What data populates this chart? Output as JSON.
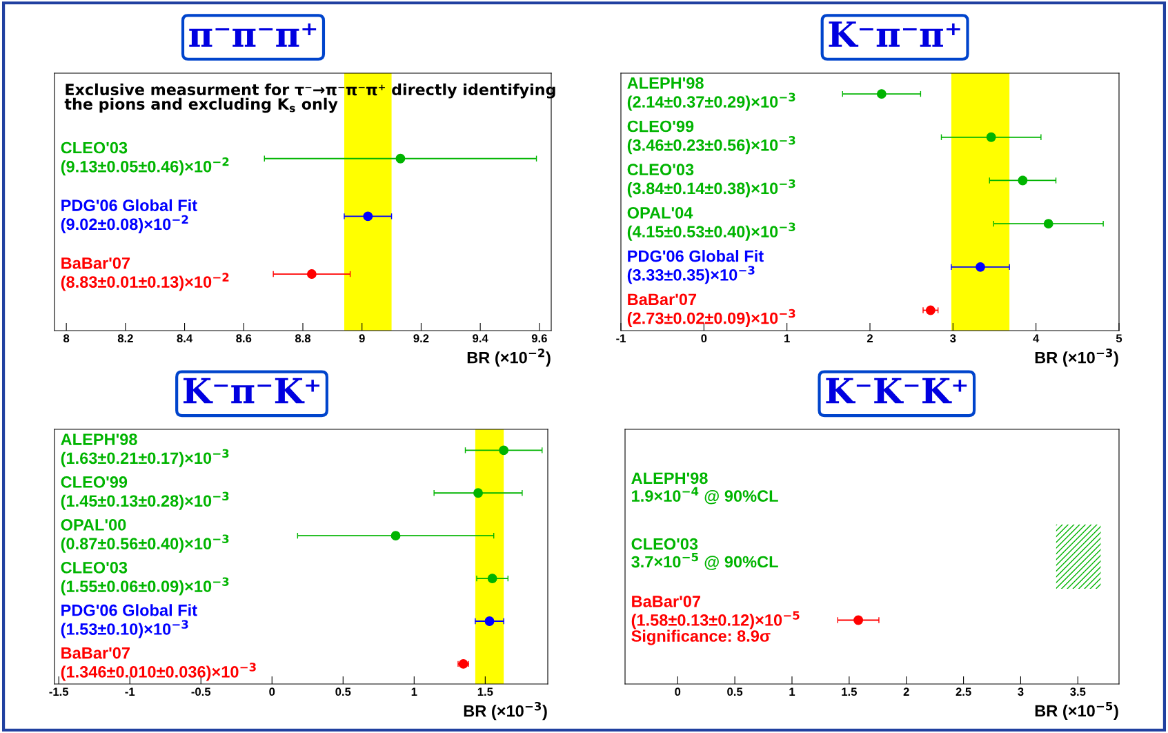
{
  "chart_data": [
    {
      "type": "scatter",
      "orientation": "horizontal",
      "title": "π⁻π⁻π⁺",
      "xlabel": "BR (×10$^{−2}$)",
      "xlim": [
        7.96,
        9.64
      ],
      "xticks": [
        8,
        8.2,
        8.4,
        8.6,
        8.8,
        9,
        9.2,
        9.4,
        9.6
      ],
      "grid": false,
      "marker": "circle",
      "categories": [
        "CLEO'03\n(9.13±0.05±0.46)×10$^{−2}$",
        "PDG'06 Global Fit\n(9.02±0.08)×10$^{−2}$",
        "BaBar'07\n(8.83±0.01±0.13)×10$^{−2}$"
      ],
      "values": [
        9.13,
        9.02,
        8.83
      ],
      "errors": [
        0.46,
        0.08,
        0.13
      ],
      "colors": [
        "#00b400",
        "#0000ff",
        "#ff0000"
      ],
      "bands": [
        {
          "axis": "x",
          "from": 8.94,
          "to": 9.1,
          "color": "#ffff00"
        }
      ],
      "annotations": [
        "Exclusive measurment for τ⁻→π⁻π⁻π⁺ directly identifying\nthe pions and excluding K$_{s}$ only"
      ]
    },
    {
      "type": "scatter",
      "orientation": "horizontal",
      "title": "K⁻π⁻π⁺",
      "xlabel": "BR (×10$^{−3}$)",
      "xlim": [
        -1,
        5
      ],
      "xticks": [
        -1,
        0,
        1,
        2,
        3,
        4,
        5
      ],
      "grid": false,
      "marker": "circle",
      "categories": [
        "ALEPH'98\n(2.14±0.37±0.29)×10$^{−3}$",
        "CLEO'99\n(3.46±0.23±0.56)×10$^{−3}$",
        "CLEO'03\n(3.84±0.14±0.38)×10$^{−3}$",
        "OPAL'04\n(4.15±0.53±0.40)×10$^{−3}$",
        "PDG'06 Global Fit\n(3.33±0.35)×10$^{−3}$",
        "BaBar'07\n(2.73±0.02±0.09)×10$^{−3}$"
      ],
      "values": [
        2.14,
        3.46,
        3.84,
        4.15,
        3.33,
        2.73
      ],
      "errors": [
        0.47,
        0.6,
        0.4,
        0.66,
        0.35,
        0.09
      ],
      "colors": [
        "#00b400",
        "#00b400",
        "#00b400",
        "#00b400",
        "#0000ff",
        "#ff0000"
      ],
      "bands": [
        {
          "axis": "x",
          "from": 2.98,
          "to": 3.68,
          "color": "#ffff00"
        }
      ]
    },
    {
      "type": "scatter",
      "orientation": "horizontal",
      "title": "K⁻π⁻K⁺",
      "xlabel": "BR (×10$^{−3}$)",
      "xlim": [
        -1.53,
        1.94
      ],
      "xticks": [
        -1.5,
        -1,
        -0.5,
        0,
        0.5,
        1,
        1.5
      ],
      "grid": false,
      "marker": "circle",
      "categories": [
        "ALEPH'98\n(1.63±0.21±0.17)×10$^{−3}$",
        "CLEO'99\n(1.45±0.13±0.28)×10$^{−3}$",
        "OPAL'00\n(0.87±0.56±0.40)×10$^{−3}$",
        "CLEO'03\n(1.55±0.06±0.09)×10$^{−3}$",
        "PDG'06 Global Fit\n(1.53±0.10)×10$^{−3}$",
        "BaBar'07\n(1.346±0.010±0.036)×10$^{−3}$"
      ],
      "values": [
        1.63,
        1.45,
        0.87,
        1.55,
        1.53,
        1.346
      ],
      "errors": [
        0.27,
        0.31,
        0.69,
        0.11,
        0.1,
        0.037
      ],
      "colors": [
        "#00b400",
        "#00b400",
        "#00b400",
        "#00b400",
        "#0000ff",
        "#ff0000"
      ],
      "bands": [
        {
          "axis": "x",
          "from": 1.43,
          "to": 1.63,
          "color": "#ffff00"
        }
      ]
    },
    {
      "type": "scatter",
      "orientation": "horizontal",
      "title": "K⁻K⁻K⁺",
      "xlabel": "BR (×10$^{−5}$)",
      "xlim": [
        -0.46,
        3.86
      ],
      "xticks": [
        0,
        0.5,
        1,
        1.5,
        2,
        2.5,
        3,
        3.5
      ],
      "grid": false,
      "marker": "circle",
      "categories": [
        "ALEPH'98\n1.9×10$^{−4}$ @ 90%CL",
        "CLEO'03\n3.7×10$^{−5}$ @ 90%CL",
        "BaBar'07\n(1.58±0.13±0.12)×10$^{−5}$\nSignificance: 8.9σ"
      ],
      "values": [
        null,
        null,
        1.58
      ],
      "errors": [
        null,
        null,
        0.18
      ],
      "colors": [
        "#00b400",
        "#00b400",
        "#ff0000"
      ],
      "bands": [
        {
          "axis": "x",
          "from": 3.31,
          "to": 3.7,
          "color": "#00b400"
        }
      ]
    }
  ]
}
